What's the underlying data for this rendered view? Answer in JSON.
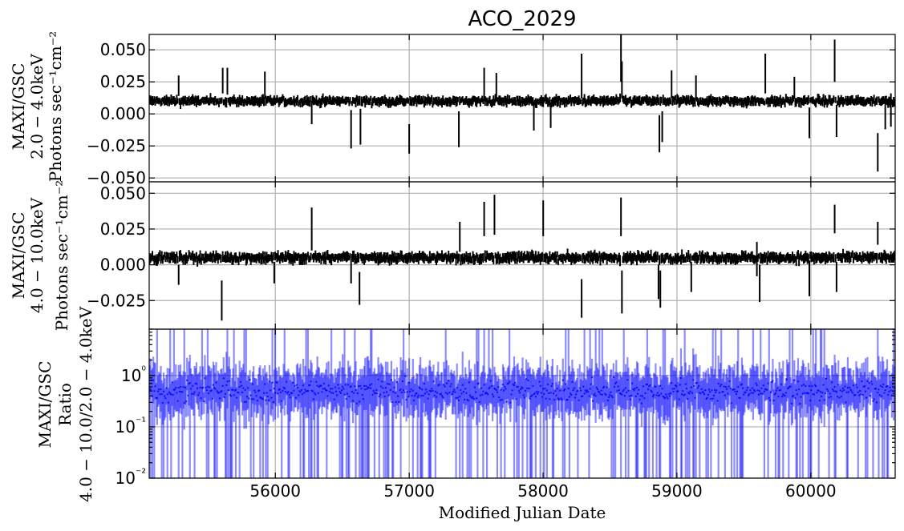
{
  "chart_data": {
    "type": "scatter",
    "title": "ACO_2029",
    "xlabel": "Modified Julian Date",
    "xlim": [
      55058,
      60630
    ],
    "x_ticks": [
      "56000",
      "57000",
      "58000",
      "59000",
      "60000"
    ],
    "panels": [
      {
        "id": "soft",
        "ylabel": [
          "MAXI/GSC",
          "2.0 − 4.0keV",
          "Photons sec⁻¹cm⁻²"
        ],
        "yscale": "linear",
        "ylim": [
          -0.053,
          0.062
        ],
        "y_ticks": [
          "0.050",
          "0.025",
          "0.000",
          "−0.025",
          "−0.050"
        ],
        "baseline": 0.01,
        "scatter": 0.0035,
        "color": "#000000",
        "errorbars": "black",
        "spikes": [
          [
            55280,
            0.014,
            0.03
          ],
          [
            55610,
            0.016,
            0.036
          ],
          [
            55640,
            0.015,
            0.036
          ],
          [
            55920,
            0.012,
            0.033
          ],
          [
            56270,
            -0.008,
            0.01
          ],
          [
            56570,
            -0.027,
            0.003
          ],
          [
            56640,
            -0.024,
            0.004
          ],
          [
            57000,
            -0.031,
            -0.008
          ],
          [
            57370,
            -0.026,
            0.002
          ],
          [
            57560,
            0.01,
            0.036
          ],
          [
            57650,
            0.01,
            0.032
          ],
          [
            57930,
            -0.013,
            0.01
          ],
          [
            58060,
            -0.011,
            0.009
          ],
          [
            58290,
            0.012,
            0.047
          ],
          [
            58580,
            0.025,
            0.062
          ],
          [
            58590,
            0.012,
            0.041
          ],
          [
            58870,
            -0.03,
            -0.001
          ],
          [
            58890,
            -0.022,
            0.002
          ],
          [
            58960,
            0.012,
            0.034
          ],
          [
            59140,
            0.011,
            0.03
          ],
          [
            59660,
            0.016,
            0.047
          ],
          [
            59880,
            0.012,
            0.029
          ],
          [
            59990,
            -0.019,
            0.005
          ],
          [
            60180,
            0.025,
            0.058
          ],
          [
            60190,
            -0.018,
            0.007
          ],
          [
            60500,
            -0.045,
            -0.015
          ],
          [
            60560,
            -0.012,
            0.014
          ],
          [
            60600,
            -0.01,
            0.016
          ]
        ]
      },
      {
        "id": "hard",
        "ylabel": [
          "MAXI/GSC",
          "4.0 − 10.0keV",
          "Photons sec⁻¹cm⁻²"
        ],
        "yscale": "linear",
        "ylim": [
          -0.045,
          0.058
        ],
        "y_ticks": [
          "0.050",
          "0.025",
          "0.000",
          "−0.025"
        ],
        "baseline": 0.005,
        "scatter": 0.0035,
        "color": "#000000",
        "errorbars": "black",
        "spikes": [
          [
            55280,
            -0.014,
            0.0
          ],
          [
            55600,
            -0.039,
            -0.011
          ],
          [
            55990,
            -0.013,
            0.002
          ],
          [
            56270,
            0.01,
            0.04
          ],
          [
            56570,
            -0.013,
            0.004
          ],
          [
            56630,
            -0.028,
            -0.005
          ],
          [
            57380,
            0.009,
            0.03
          ],
          [
            57560,
            0.02,
            0.044
          ],
          [
            57640,
            0.021,
            0.049
          ],
          [
            58000,
            0.02,
            0.045
          ],
          [
            58290,
            -0.037,
            -0.01
          ],
          [
            58580,
            0.02,
            0.047
          ],
          [
            58590,
            -0.034,
            -0.004
          ],
          [
            58860,
            -0.024,
            0.0
          ],
          [
            58880,
            -0.03,
            -0.004
          ],
          [
            59110,
            -0.019,
            0.002
          ],
          [
            59600,
            -0.008,
            0.016
          ],
          [
            59620,
            -0.026,
            0.0
          ],
          [
            59990,
            -0.022,
            0.003
          ],
          [
            60180,
            0.022,
            0.042
          ],
          [
            60190,
            -0.019,
            0.002
          ],
          [
            60500,
            0.014,
            0.03
          ]
        ]
      },
      {
        "id": "ratio",
        "ylabel": [
          "MAXI/GSC",
          "Ratio",
          "4.0 − 10.0/2.0 − 4.0keV"
        ],
        "yscale": "log",
        "ylim": [
          0.01,
          8.0
        ],
        "y_ticks": [
          "10⁰",
          "10⁻¹",
          "10⁻²"
        ],
        "y_tick_values": [
          1.0,
          0.1,
          0.01
        ],
        "baseline": 0.5,
        "color": "#0000ff",
        "errorbars": "translucent blue"
      }
    ]
  }
}
